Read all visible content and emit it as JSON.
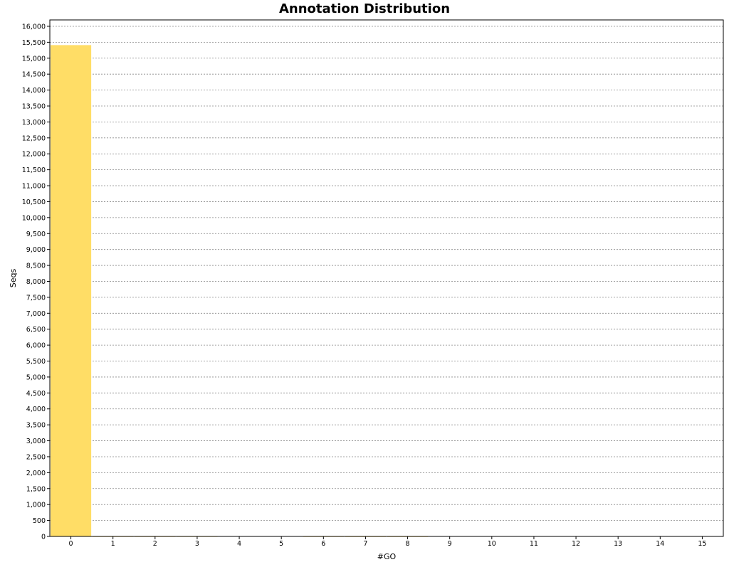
{
  "chart_data": {
    "type": "bar",
    "title": "Annotation Distribution",
    "xlabel": "#GO",
    "ylabel": "Seqs",
    "categories": [
      "0",
      "1",
      "2",
      "3",
      "4",
      "5",
      "6",
      "7",
      "8",
      "9",
      "10",
      "11",
      "12",
      "13",
      "14",
      "15"
    ],
    "values": [
      15410,
      2,
      2,
      3,
      10,
      10,
      2,
      1,
      1,
      0,
      0,
      0,
      0,
      0,
      0,
      0
    ],
    "ylim": [
      0,
      16200
    ],
    "ytick_step": 500,
    "grid": true,
    "grid_style": "dashed",
    "bar_color": "#ffdd66",
    "legend": "none"
  }
}
